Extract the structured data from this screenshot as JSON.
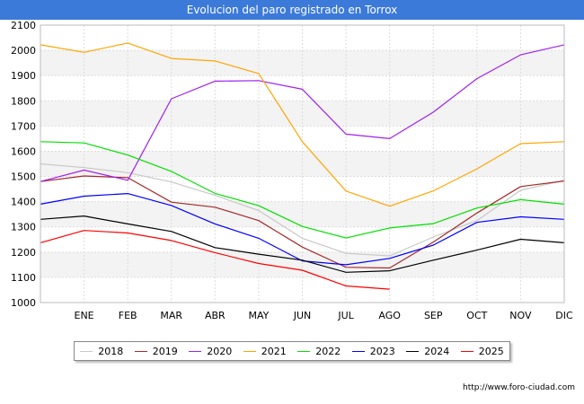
{
  "chart_data": {
    "type": "line",
    "title": "Evolucion del paro registrado en Torrox",
    "xlabel": "",
    "ylabel": "",
    "categories": [
      "",
      "ENE",
      "FEB",
      "MAR",
      "ABR",
      "MAY",
      "JUN",
      "JUL",
      "AGO",
      "SEP",
      "OCT",
      "NOV",
      "DIC"
    ],
    "ylim": [
      1000,
      2100
    ],
    "yticks": [
      1000,
      1100,
      1200,
      1300,
      1400,
      1500,
      1600,
      1700,
      1800,
      1900,
      2000,
      2100
    ],
    "grid": true,
    "legend_position": "bottom",
    "series": [
      {
        "name": "2018",
        "color": "#c8c8c8",
        "values": [
          1550,
          1535,
          1515,
          1478,
          1425,
          1365,
          1255,
          1195,
          1185,
          1260,
          1325,
          1445,
          1485
        ]
      },
      {
        "name": "2019",
        "color": "#a52a2a",
        "values": [
          1480,
          1502,
          1495,
          1398,
          1378,
          1325,
          1220,
          1140,
          1137,
          1240,
          1355,
          1460,
          1482
        ]
      },
      {
        "name": "2020",
        "color": "#a020f0",
        "values": [
          1480,
          1525,
          1485,
          1808,
          1878,
          1880,
          1846,
          1668,
          1650,
          1755,
          1888,
          1982,
          2022
        ]
      },
      {
        "name": "2021",
        "color": "#ffa500",
        "values": [
          2022,
          1992,
          2029,
          1968,
          1958,
          1908,
          1638,
          1442,
          1382,
          1443,
          1530,
          1630,
          1638
        ]
      },
      {
        "name": "2022",
        "color": "#00e000",
        "values": [
          1638,
          1633,
          1585,
          1520,
          1433,
          1384,
          1302,
          1256,
          1296,
          1313,
          1375,
          1408,
          1390
        ]
      },
      {
        "name": "2023",
        "color": "#0000ff",
        "values": [
          1390,
          1422,
          1432,
          1385,
          1312,
          1255,
          1165,
          1150,
          1175,
          1228,
          1318,
          1340,
          1330
        ]
      },
      {
        "name": "2024",
        "color": "#000000",
        "values": [
          1330,
          1343,
          1312,
          1282,
          1218,
          1192,
          1168,
          1120,
          1126,
          1168,
          1208,
          1251,
          1237
        ]
      },
      {
        "name": "2025",
        "color": "#ff0000",
        "values": [
          1237,
          1286,
          1276,
          1246,
          1198,
          1155,
          1128,
          1066,
          1053,
          null,
          null,
          null,
          null
        ]
      }
    ]
  },
  "footer": {
    "source": "http://www.foro-ciudad.com"
  }
}
